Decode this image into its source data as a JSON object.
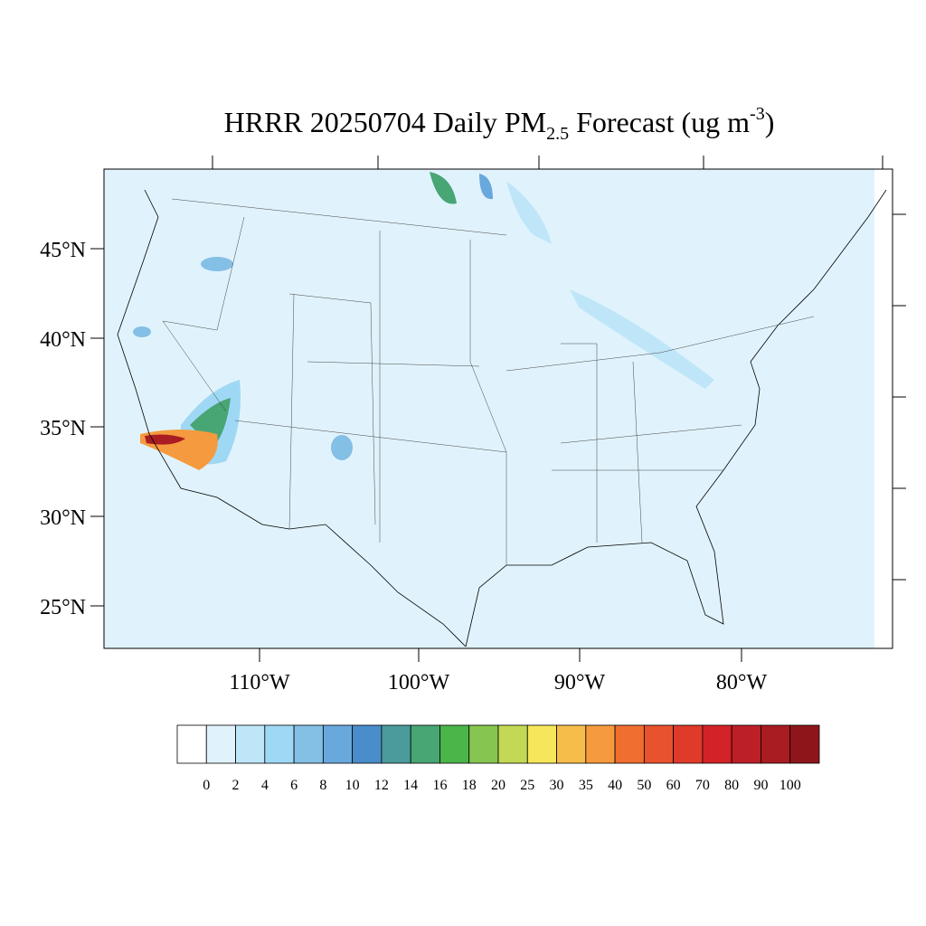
{
  "title": {
    "main": "HRRR 20250704 Daily PM",
    "sub": "2.5",
    "mid": " Forecast (ug m",
    "sup": "-3",
    "end": ")"
  },
  "lat_labels": [
    "45°N",
    "40°N",
    "35°N",
    "30°N",
    "25°N"
  ],
  "lon_labels": [
    "110°W",
    "100°W",
    "90°W",
    "80°W"
  ],
  "colorbar": {
    "labels": [
      "0",
      "2",
      "4",
      "6",
      "8",
      "10",
      "12",
      "14",
      "16",
      "18",
      "20",
      "25",
      "30",
      "35",
      "40",
      "50",
      "60",
      "70",
      "80",
      "90",
      "100"
    ],
    "colors": [
      "#ffffff",
      "#e0f3fc",
      "#bfe6f8",
      "#9fd8f5",
      "#84bfe6",
      "#69a8dc",
      "#4a8dcb",
      "#4b9b9b",
      "#48a574",
      "#4bb549",
      "#86c54f",
      "#c3d854",
      "#f6e65b",
      "#f7bd4b",
      "#f59a3e",
      "#f06e2f",
      "#e8522e",
      "#e03a2a",
      "#d42229",
      "#bd1f27",
      "#a81c22",
      "#8e161b"
    ]
  }
}
